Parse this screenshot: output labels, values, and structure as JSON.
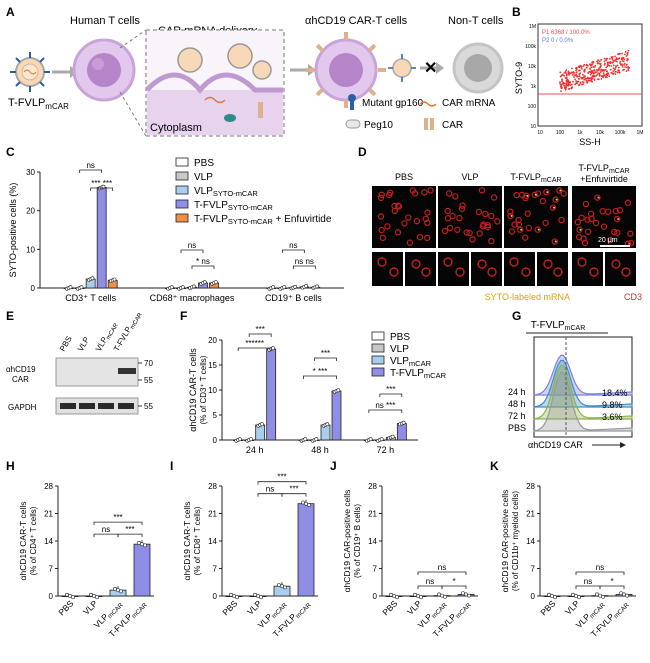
{
  "panel_labels": [
    "A",
    "B",
    "C",
    "D",
    "E",
    "F",
    "G",
    "H",
    "I",
    "J",
    "K"
  ],
  "panelA": {
    "labels": [
      "Human T cells",
      "CAR mRNA delivery",
      "αhCD19 CAR-T cells",
      "Non-T cells",
      "Cytoplasm",
      "T-FVLP",
      "mCAR"
    ],
    "legend": [
      {
        "icon": "mutant-gp160-icon",
        "text": "Mutant gp160"
      },
      {
        "icon": "car-mrna-icon",
        "text": "CAR mRNA"
      },
      {
        "icon": "peg10-icon",
        "text": "Peg10"
      },
      {
        "icon": "car-icon",
        "text": "CAR"
      }
    ]
  },
  "panelB": {
    "gate_text": [
      "P1",
      "6368",
      "/",
      "100.0%",
      "P2",
      "0",
      "/",
      "0.0%"
    ],
    "ylabel": "SYTO-9",
    "xlabel": "SS-H",
    "ticks": [
      "10",
      "100",
      "1k",
      "10k",
      "100k",
      "1M"
    ],
    "xticks": [
      "10",
      "100",
      "1k",
      "10k",
      "100k",
      "1M"
    ]
  },
  "chart_data": [
    {
      "panel": "C",
      "type": "bar",
      "ylabel": "SYTO-positive cells (%)",
      "ylim": [
        0,
        30
      ],
      "yticks": [
        "0",
        "10",
        "20",
        "30"
      ],
      "groups": [
        "CD3⁺ T cells",
        "CD68⁺ macrophages",
        "CD19⁺ B cells"
      ],
      "series": [
        {
          "name": "PBS",
          "color": "#ffffff",
          "values": [
            0,
            0,
            0
          ]
        },
        {
          "name": "VLP",
          "color": "#c8c8c8",
          "values": [
            0,
            0,
            0
          ]
        },
        {
          "name": "VLP",
          "sub": "SYTO-mCAR",
          "color": "#a9cdee",
          "values": [
            2.3,
            0.2,
            0.1
          ]
        },
        {
          "name": "T-FVLP",
          "sub": "SYTO-mCAR",
          "color": "#8f8de6",
          "values": [
            26,
            1.3,
            0.3
          ]
        },
        {
          "name": "T-FVLP",
          "sub": "SYTO-mCAR",
          "suffix": " + Enfuvirtide",
          "color": "#ef8e46",
          "values": [
            2.0,
            1.3,
            0.2
          ]
        }
      ],
      "annotations": [
        "ns",
        "*** ***",
        "ns",
        "* ns",
        "ns",
        "ns ns"
      ]
    },
    {
      "panel": "F",
      "type": "bar",
      "ylabel": "αhCD19 CAR-T cells",
      "ylabel2": "(% of CD3⁺ T cells)",
      "ylim": [
        0,
        20
      ],
      "yticks": [
        "0",
        "5",
        "10",
        "15",
        "20"
      ],
      "groups": [
        "24 h",
        "48 h",
        "72 h"
      ],
      "series": [
        {
          "name": "PBS",
          "color": "#ffffff",
          "values": [
            0,
            0,
            0
          ]
        },
        {
          "name": "VLP",
          "color": "#c8c8c8",
          "values": [
            0,
            0,
            0
          ]
        },
        {
          "name": "VLP",
          "sub": "mCAR",
          "color": "#a9cdee",
          "values": [
            3.0,
            3.0,
            0.5
          ]
        },
        {
          "name": "T-FVLP",
          "sub": "mCAR",
          "color": "#8f8de6",
          "values": [
            18.2,
            9.8,
            3.3
          ]
        }
      ],
      "annotations": [
        "***",
        "******",
        "***",
        "* ***",
        "***",
        "ns ***"
      ]
    },
    {
      "panel": "H",
      "type": "bar",
      "ylabel": "αhCD19 CAR-T cells",
      "ylabel2": "(% of CD4⁺ T cells)",
      "ylim": [
        0,
        28
      ],
      "yticks": [
        "0",
        "7",
        "14",
        "21",
        "28"
      ],
      "categories": [
        "PBS",
        "VLP",
        "VLP",
        "T-FVLP"
      ],
      "subs": [
        "",
        "",
        "mCAR",
        "mCAR"
      ],
      "values": [
        0,
        0,
        1.5,
        13.2
      ],
      "annotations": [
        "***",
        "ns",
        "***"
      ]
    },
    {
      "panel": "I",
      "type": "bar",
      "ylabel": "αhCD19 CAR-T cells",
      "ylabel2": "(% of CD8⁺ T cells)",
      "ylim": [
        0,
        28
      ],
      "yticks": [
        "0",
        "7",
        "14",
        "21",
        "28"
      ],
      "categories": [
        "PBS",
        "VLP",
        "VLP",
        "T-FVLP"
      ],
      "subs": [
        "",
        "",
        "mCAR",
        "mCAR"
      ],
      "values": [
        0,
        0,
        2.5,
        23.5
      ],
      "annotations": [
        "***",
        "ns",
        "***"
      ]
    },
    {
      "panel": "J",
      "type": "bar",
      "ylabel": "αhCD19 CAR-positive cells",
      "ylabel2": "(% of CD19⁺ B cells)",
      "ylim": [
        0,
        28
      ],
      "yticks": [
        "0",
        "7",
        "14",
        "21",
        "28"
      ],
      "categories": [
        "PBS",
        "VLP",
        "VLP",
        "T-FVLP"
      ],
      "subs": [
        "",
        "",
        "mCAR",
        "mCAR"
      ],
      "values": [
        0,
        0,
        0.1,
        0.4
      ],
      "annotations": [
        "ns",
        "ns",
        "*"
      ]
    },
    {
      "panel": "K",
      "type": "bar",
      "ylabel": "αhCD19 CAR-positive cells",
      "ylabel2": "(% of CD11b⁺ myeloid cells)",
      "ylim": [
        0,
        28
      ],
      "yticks": [
        "0",
        "7",
        "14",
        "21",
        "28"
      ],
      "categories": [
        "PBS",
        "VLP",
        "VLP",
        "T-FVLP"
      ],
      "subs": [
        "",
        "",
        "mCAR",
        "mCAR"
      ],
      "values": [
        0,
        0,
        0.1,
        0.4
      ],
      "annotations": [
        "ns",
        "ns",
        "*"
      ]
    }
  ],
  "panelD": {
    "columns": [
      "PBS",
      "VLP",
      "T-FVLP",
      "T-FVLP"
    ],
    "subs": [
      "",
      "",
      "mCAR",
      "mCAR"
    ],
    "extra": "+Enfuvirtide",
    "scale": "20 μm",
    "caption1": "SYTO-labeled mRNA",
    "caption2": "CD3"
  },
  "panelE": {
    "lanes": [
      "PBS",
      "VLP",
      "VLP",
      "T-FVLP"
    ],
    "subs": [
      "",
      "",
      "mCAR",
      "mCAR"
    ],
    "row1": "αhCD19",
    "row1b": "CAR",
    "row2": "GAPDH",
    "mw": [
      "70",
      "55",
      "55"
    ]
  },
  "panelG": {
    "title": "T-FVLP",
    "title_sub": "mCAR",
    "rows": [
      "24 h",
      "48 h",
      "72 h",
      "PBS"
    ],
    "pct": [
      "18.4%",
      "9.8%",
      "3.6%"
    ],
    "xlabel": "αhCD19 CAR"
  }
}
